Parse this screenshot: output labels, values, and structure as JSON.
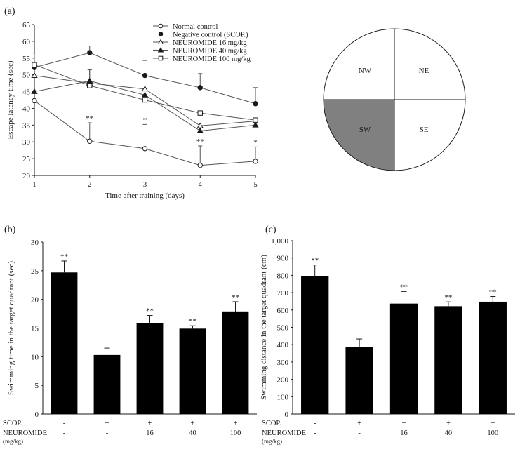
{
  "panel_labels": {
    "a": "(a)",
    "b": "(b)",
    "c": "(c)"
  },
  "quadrant_map": {
    "quadrants": [
      "NW",
      "NE",
      "SW",
      "SE"
    ],
    "target": "SW",
    "target_color": "#808080"
  },
  "colors": {
    "bar": "#000000",
    "axis": "#1a1a1a",
    "star_teal": "#3a8a8a"
  },
  "table_rows": {
    "scop": {
      "label": "SCOP.",
      "values": [
        "-",
        "+",
        "+",
        "+",
        "+"
      ]
    },
    "neuromide": {
      "label": "NEUROMIDE",
      "sublabel": "(mg/kg)",
      "values": [
        "-",
        "-",
        "16",
        "40",
        "100"
      ]
    }
  },
  "chart_data": [
    {
      "id": "a",
      "type": "line",
      "xlabel": "Time after training (days)",
      "ylabel": "Escape latency time (sec)",
      "x": [
        1,
        2,
        3,
        4,
        5
      ],
      "xticks": [
        "1",
        "2",
        "3",
        "4",
        "5"
      ],
      "ylim": [
        20,
        65
      ],
      "yticks": [
        "20",
        "25",
        "30",
        "35",
        "40",
        "45",
        "50",
        "55",
        "60",
        "65"
      ],
      "series": [
        {
          "name": "Normal control",
          "marker": "open-circle",
          "values": [
            42.3,
            30.2,
            28.0,
            23.0,
            24.2
          ],
          "err": [
            0,
            5.5,
            7.2,
            5.8,
            4.3
          ],
          "stars": [
            "",
            "**",
            "*",
            "**",
            "*"
          ]
        },
        {
          "name": "Negative control (SCOP.)",
          "marker": "filled-circle",
          "values": [
            52.2,
            56.6,
            49.8,
            46.2,
            41.4
          ],
          "err": [
            0,
            2.0,
            4.5,
            4.2,
            4.8
          ]
        },
        {
          "name": "NEUROMIDE 16 mg/kg",
          "marker": "open-triangle",
          "values": [
            49.8,
            47.5,
            45.8,
            34.8,
            36.2
          ],
          "err": [
            0,
            4.0,
            0,
            0,
            0
          ]
        },
        {
          "name": "NEUROMIDE 40 mg/kg",
          "marker": "filled-triangle",
          "values": [
            45.0,
            48.2,
            44.0,
            33.3,
            35.0
          ],
          "err": [
            0,
            3.5,
            0,
            0,
            0
          ]
        },
        {
          "name": "NEUROMIDE 100 mg/kg",
          "marker": "open-square",
          "values": [
            53.0,
            46.8,
            42.5,
            38.6,
            36.5
          ],
          "err": [
            3.5,
            0,
            0,
            0,
            0
          ]
        }
      ],
      "legend": "top-center"
    },
    {
      "id": "b",
      "type": "bar",
      "ylabel": "Swimming time in the target quadrant (sec)",
      "values": [
        24.7,
        10.3,
        15.9,
        14.9,
        17.9
      ],
      "err": [
        2.0,
        1.2,
        1.3,
        0.5,
        1.7
      ],
      "stars": [
        "**",
        "",
        "**",
        "**",
        "**"
      ],
      "ylim": [
        0,
        30
      ],
      "yticks": [
        "0",
        "5",
        "10",
        "15",
        "20",
        "25",
        "30"
      ]
    },
    {
      "id": "c",
      "type": "bar",
      "ylabel": "Swimming distance in the target quadrant (cm)",
      "values": [
        795,
        388,
        637,
        622,
        648
      ],
      "err": [
        65,
        45,
        70,
        25,
        30
      ],
      "stars": [
        "**",
        "",
        "**",
        "**",
        "**"
      ],
      "ylim": [
        0,
        1000
      ],
      "yticks": [
        "0",
        "100",
        "200",
        "300",
        "400",
        "500",
        "600",
        "700",
        "800",
        "900",
        "1,000"
      ]
    }
  ]
}
